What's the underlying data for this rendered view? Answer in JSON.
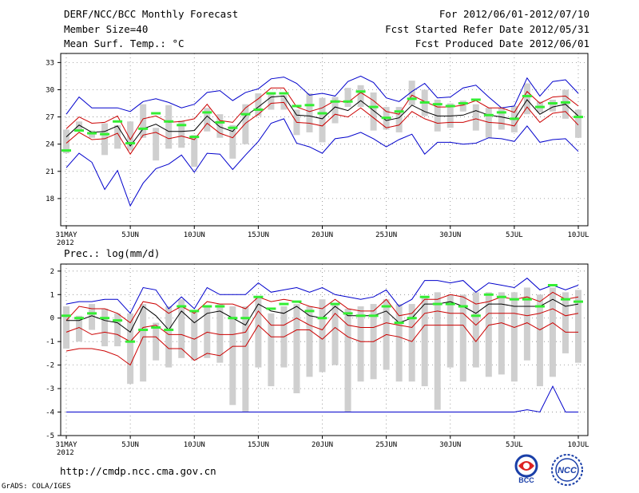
{
  "header": {
    "left": [
      "DERF/NCC/BCC Monthly Forecast",
      "Member Size=40",
      "Mean Surf. Temp.: °C"
    ],
    "right": [
      "For 2012/06/01-2012/07/10",
      "Fcst Started Refer Date 2012/05/31",
      "Fcst Produced Date 2012/06/01"
    ]
  },
  "footer": {
    "url": "http://cmdp.ncc.cma.gov.cn",
    "credit": "GrADS: COLA/IGES",
    "logo_bcc": "BCC",
    "logo_ncc": "NCC"
  },
  "colors": {
    "envelope": "#0000cc",
    "spread": "#cc0000",
    "mean": "#000000",
    "bars": "#cfcfcf",
    "obs": "#33ee33",
    "grid": "#888888"
  },
  "chart_data": [
    {
      "type": "line",
      "id": "temperature",
      "title": "Mean Surf. Temp.: °C",
      "x": [
        0,
        1,
        2,
        3,
        4,
        5,
        6,
        7,
        8,
        9,
        10,
        11,
        12,
        13,
        14,
        15,
        16,
        17,
        18,
        19,
        20,
        21,
        22,
        23,
        24,
        25,
        26,
        27,
        28,
        29,
        30,
        31,
        32,
        33,
        34,
        35,
        36,
        37,
        38,
        39,
        40
      ],
      "xticks": [
        {
          "i": 0,
          "label": "31MAY",
          "sub": "2012"
        },
        {
          "i": 5,
          "label": "5JUN"
        },
        {
          "i": 10,
          "label": "10JUN"
        },
        {
          "i": 15,
          "label": "15JUN"
        },
        {
          "i": 20,
          "label": "20JUN"
        },
        {
          "i": 25,
          "label": "25JUN"
        },
        {
          "i": 30,
          "label": "30JUN"
        },
        {
          "i": 35,
          "label": "5JUL"
        },
        {
          "i": 40,
          "label": "10JUL"
        }
      ],
      "ylim": [
        15,
        34
      ],
      "yticks": [
        18,
        21,
        24,
        27,
        30,
        33
      ],
      "series": [
        {
          "name": "max",
          "role": "envelope",
          "values": [
            27.3,
            29.2,
            28.0,
            28.0,
            28.0,
            27.6,
            28.7,
            29.0,
            28.6,
            28.0,
            28.4,
            29.7,
            29.9,
            28.8,
            29.7,
            30.1,
            31.2,
            31.4,
            30.7,
            29.4,
            29.6,
            29.3,
            30.9,
            31.5,
            30.8,
            29.1,
            28.7,
            29.8,
            30.7,
            29.1,
            29.2,
            30.2,
            30.5,
            29.2,
            28.0,
            28.2,
            31.3,
            29.3,
            30.9,
            31.1,
            29.6
          ]
        },
        {
          "name": "upper",
          "role": "spread",
          "values": [
            25.7,
            27.0,
            26.3,
            26.4,
            27.1,
            24.5,
            26.8,
            27.1,
            26.4,
            26.5,
            26.8,
            28.4,
            26.6,
            26.4,
            28.0,
            29.0,
            30.2,
            30.2,
            28.1,
            27.6,
            28.0,
            28.8,
            28.6,
            29.7,
            28.8,
            27.6,
            27.3,
            29.4,
            28.7,
            28.1,
            28.1,
            28.3,
            28.8,
            28.0,
            28.0,
            27.5,
            29.8,
            28.5,
            29.2,
            29.3,
            28.2
          ]
        },
        {
          "name": "mean",
          "role": "mean",
          "values": [
            24.8,
            26.1,
            25.3,
            25.4,
            26.0,
            23.8,
            25.7,
            26.2,
            25.4,
            25.4,
            25.5,
            27.1,
            25.9,
            25.4,
            27.1,
            28.1,
            29.2,
            29.3,
            27.2,
            27.1,
            26.8,
            28.1,
            27.7,
            28.8,
            27.7,
            26.6,
            26.9,
            28.3,
            27.6,
            27.1,
            27.1,
            27.2,
            27.7,
            27.2,
            27.0,
            26.7,
            28.9,
            27.3,
            28.1,
            28.4,
            27.1
          ]
        },
        {
          "name": "lower",
          "role": "spread",
          "values": [
            24.1,
            25.3,
            24.5,
            24.6,
            25.2,
            22.9,
            25.0,
            25.3,
            24.6,
            24.9,
            24.5,
            26.3,
            25.2,
            24.7,
            26.3,
            27.3,
            28.5,
            28.6,
            26.4,
            26.3,
            26.0,
            27.3,
            27.0,
            28.0,
            26.9,
            25.8,
            26.1,
            27.6,
            26.8,
            26.3,
            26.4,
            26.4,
            26.8,
            26.4,
            26.3,
            26.0,
            28.1,
            26.4,
            27.4,
            27.6,
            26.1
          ]
        },
        {
          "name": "min",
          "role": "envelope",
          "values": [
            21.4,
            23.0,
            22.0,
            19.0,
            21.1,
            17.2,
            19.7,
            21.3,
            21.8,
            22.8,
            20.9,
            23.0,
            22.9,
            21.2,
            22.8,
            24.3,
            26.3,
            26.8,
            24.1,
            23.7,
            23.0,
            24.6,
            24.8,
            25.3,
            24.6,
            23.7,
            24.5,
            25.1,
            22.9,
            24.2,
            24.2,
            24.0,
            24.1,
            24.7,
            24.6,
            24.3,
            26.0,
            24.2,
            24.5,
            24.6,
            23.2
          ]
        },
        {
          "name": "obs",
          "role": "observed",
          "values": [
            23.3,
            25.5,
            25.2,
            25.1,
            26.5,
            24.1,
            25.7,
            27.4,
            26.5,
            26.1,
            24.8,
            27.5,
            26.4,
            25.8,
            27.3,
            27.8,
            29.6,
            29.6,
            28.2,
            28.3,
            27.4,
            28.7,
            28.7,
            29.8,
            28.1,
            26.9,
            27.6,
            29.0,
            28.6,
            28.4,
            28.2,
            28.5,
            28.9,
            27.2,
            27.5,
            26.8,
            29.3,
            28.1,
            28.5,
            28.6,
            27.0
          ]
        }
      ],
      "bars": [
        [
          23.0,
          25.6
        ],
        [
          25.5,
          26.5
        ],
        [
          24.7,
          25.5
        ],
        [
          22.8,
          26.3
        ],
        [
          23.5,
          26.1
        ],
        [
          23.3,
          26.5
        ],
        [
          24.7,
          28.4
        ],
        [
          22.2,
          25.8
        ],
        [
          23.5,
          28.3
        ],
        [
          23.6,
          26.6
        ],
        [
          21.5,
          25.0
        ],
        [
          25.4,
          28.0
        ],
        [
          24.7,
          27.3
        ],
        [
          22.4,
          26.1
        ],
        [
          24.0,
          28.4
        ],
        [
          27.1,
          29.6
        ],
        [
          27.8,
          29.7
        ],
        [
          27.8,
          29.4
        ],
        [
          25.0,
          27.8
        ],
        [
          25.3,
          29.6
        ],
        [
          24.2,
          29.1
        ],
        [
          26.3,
          29.2
        ],
        [
          28.1,
          30.2
        ],
        [
          28.1,
          30.5
        ],
        [
          25.5,
          29.7
        ],
        [
          25.6,
          28.1
        ],
        [
          25.3,
          28.1
        ],
        [
          28.3,
          31.0
        ],
        [
          27.1,
          30.0
        ],
        [
          25.4,
          28.9
        ],
        [
          25.8,
          28.5
        ],
        [
          27.6,
          28.8
        ],
        [
          25.5,
          28.4
        ],
        [
          24.7,
          28.0
        ],
        [
          25.6,
          28.0
        ],
        [
          25.3,
          28.2
        ],
        [
          27.3,
          30.7
        ],
        [
          27.5,
          28.7
        ],
        [
          27.6,
          28.9
        ],
        [
          26.8,
          30.0
        ],
        [
          24.7,
          27.8
        ]
      ]
    },
    {
      "type": "line",
      "id": "precipitation",
      "title": "Prec.: log(mm/d)",
      "x": [
        0,
        1,
        2,
        3,
        4,
        5,
        6,
        7,
        8,
        9,
        10,
        11,
        12,
        13,
        14,
        15,
        16,
        17,
        18,
        19,
        20,
        21,
        22,
        23,
        24,
        25,
        26,
        27,
        28,
        29,
        30,
        31,
        32,
        33,
        34,
        35,
        36,
        37,
        38,
        39,
        40
      ],
      "xticks": [
        {
          "i": 0,
          "label": "31MAY",
          "sub": "2012"
        },
        {
          "i": 5,
          "label": "5JUN"
        },
        {
          "i": 10,
          "label": "10JUN"
        },
        {
          "i": 15,
          "label": "15JUN"
        },
        {
          "i": 20,
          "label": "20JUN"
        },
        {
          "i": 25,
          "label": "25JUN"
        },
        {
          "i": 30,
          "label": "30JUN"
        },
        {
          "i": 35,
          "label": "5JUL"
        },
        {
          "i": 40,
          "label": "10JUL"
        }
      ],
      "ylim": [
        -5,
        2.3
      ],
      "yticks": [
        -5,
        -4,
        -3,
        -2,
        -1,
        0,
        1,
        2
      ],
      "series": [
        {
          "name": "max",
          "role": "envelope",
          "values": [
            0.6,
            0.7,
            0.7,
            0.8,
            0.8,
            0.2,
            1.3,
            1.2,
            0.4,
            0.9,
            0.4,
            1.3,
            1.0,
            1.0,
            1.0,
            1.5,
            1.1,
            1.2,
            1.3,
            1.1,
            1.3,
            1.0,
            0.9,
            0.8,
            0.9,
            1.2,
            0.5,
            0.8,
            1.6,
            1.6,
            1.5,
            1.6,
            1.1,
            1.5,
            1.4,
            1.3,
            1.7,
            1.2,
            1.4,
            1.2,
            1.4
          ]
        },
        {
          "name": "upper",
          "role": "spread",
          "values": [
            -0.1,
            0.5,
            0.4,
            0.4,
            0.2,
            -0.2,
            0.7,
            0.6,
            0.2,
            0.5,
            0.2,
            0.7,
            0.6,
            0.6,
            0.4,
            0.9,
            0.7,
            0.8,
            0.7,
            0.5,
            0.4,
            0.8,
            0.4,
            0.3,
            0.3,
            0.8,
            0.1,
            0.2,
            0.8,
            0.8,
            1.0,
            0.9,
            0.6,
            0.7,
            0.9,
            0.8,
            0.9,
            0.7,
            1.1,
            0.8,
            0.9
          ]
        },
        {
          "name": "mean",
          "role": "mean",
          "values": [
            -0.1,
            -0.1,
            0.1,
            -0.1,
            -0.2,
            -0.6,
            0.5,
            0.1,
            -0.5,
            0.3,
            -0.2,
            0.2,
            0.3,
            0.0,
            -0.3,
            0.6,
            0.3,
            0.2,
            0.5,
            0.1,
            0.0,
            0.5,
            0.1,
            0.1,
            0.1,
            0.3,
            -0.2,
            0.0,
            0.6,
            0.6,
            0.7,
            0.5,
            0.2,
            0.6,
            0.6,
            0.5,
            0.5,
            0.5,
            0.8,
            0.5,
            0.6
          ]
        },
        {
          "name": "lower",
          "role": "spread",
          "values": [
            -0.6,
            -0.4,
            -0.7,
            -0.6,
            -0.7,
            -1.0,
            -0.4,
            -0.3,
            -0.7,
            -0.7,
            -0.9,
            -0.6,
            -0.7,
            -0.7,
            -0.6,
            0.3,
            -0.3,
            -0.3,
            0.0,
            -0.3,
            -0.5,
            0.2,
            -0.3,
            -0.4,
            -0.4,
            -0.2,
            -0.3,
            -0.4,
            0.2,
            0.3,
            0.2,
            0.2,
            -0.3,
            0.2,
            0.2,
            0.2,
            0.1,
            0.2,
            0.4,
            0.1,
            0.2
          ]
        },
        {
          "name": "min2",
          "role": "spread",
          "values": [
            -1.4,
            -1.3,
            -1.3,
            -1.4,
            -1.6,
            -2.0,
            -0.8,
            -0.8,
            -1.3,
            -1.3,
            -1.8,
            -1.5,
            -1.6,
            -1.2,
            -1.2,
            -0.3,
            -0.8,
            -0.8,
            -0.5,
            -0.5,
            -0.9,
            -0.4,
            -0.8,
            -1.0,
            -1.0,
            -0.7,
            -0.8,
            -1.0,
            -0.3,
            -0.3,
            -0.3,
            -0.3,
            -1.0,
            -0.3,
            -0.2,
            -0.4,
            -0.2,
            -0.5,
            -0.2,
            -0.6,
            -0.6
          ]
        },
        {
          "name": "min",
          "role": "envelope",
          "values": [
            -4.0,
            -4.0,
            -4.0,
            -4.0,
            -4.0,
            -4.0,
            -4.0,
            -4.0,
            -4.0,
            -4.0,
            -4.0,
            -4.0,
            -4.0,
            -4.0,
            -4.0,
            -4.0,
            -4.0,
            -4.0,
            -4.0,
            -4.0,
            -4.0,
            -4.0,
            -4.0,
            -4.0,
            -4.0,
            -4.0,
            -4.0,
            -4.0,
            -4.0,
            -4.0,
            -4.0,
            -4.0,
            -4.0,
            -4.0,
            -4.0,
            -4.0,
            -3.9,
            -4.0,
            -2.9,
            -4.0,
            -4.0
          ]
        },
        {
          "name": "obs",
          "role": "observed",
          "values": [
            0.1,
            0.0,
            0.2,
            0.0,
            -0.1,
            -1.0,
            -0.5,
            -0.4,
            -0.5,
            0.5,
            0.3,
            0.5,
            0.5,
            0.0,
            0.0,
            0.9,
            0.4,
            0.6,
            0.7,
            0.3,
            0.0,
            0.6,
            0.2,
            0.1,
            0.1,
            0.5,
            -0.2,
            0.0,
            0.9,
            0.6,
            0.6,
            0.5,
            0.1,
            1.0,
            0.9,
            0.8,
            0.8,
            0.5,
            1.4,
            0.8,
            0.7
          ]
        }
      ],
      "bars": [
        [
          -1.3,
          0.5
        ],
        [
          -1.0,
          0.1
        ],
        [
          -0.5,
          0.6
        ],
        [
          -1.2,
          0.4
        ],
        [
          -1.2,
          0.2
        ],
        [
          -2.8,
          0.2
        ],
        [
          -2.7,
          0.6
        ],
        [
          -1.8,
          -0.2
        ],
        [
          -2.1,
          0.5
        ],
        [
          -1.7,
          0.8
        ],
        [
          -1.8,
          0.3
        ],
        [
          -1.7,
          0.5
        ],
        [
          -1.9,
          0.6
        ],
        [
          -3.7,
          0.5
        ],
        [
          -4.0,
          0.5
        ],
        [
          -2.1,
          0.9
        ],
        [
          -2.9,
          0.2
        ],
        [
          -2.1,
          0.5
        ],
        [
          -3.2,
          0.6
        ],
        [
          -2.5,
          0.5
        ],
        [
          -2.3,
          0.8
        ],
        [
          -2.0,
          0.6
        ],
        [
          -4.0,
          0.4
        ],
        [
          -2.7,
          0.5
        ],
        [
          -2.6,
          0.6
        ],
        [
          -2.2,
          0.8
        ],
        [
          -2.7,
          0.6
        ],
        [
          -2.7,
          0.6
        ],
        [
          -2.9,
          0.9
        ],
        [
          -3.9,
          1.1
        ],
        [
          -2.1,
          1.0
        ],
        [
          -2.7,
          1.0
        ],
        [
          -2.1,
          1.1
        ],
        [
          -2.5,
          1.1
        ],
        [
          -2.4,
          1.1
        ],
        [
          -2.7,
          1.1
        ],
        [
          -1.8,
          1.3
        ],
        [
          -2.9,
          1.0
        ],
        [
          -2.5,
          1.3
        ],
        [
          -1.5,
          1.1
        ],
        [
          -1.9,
          1.2
        ]
      ]
    }
  ]
}
